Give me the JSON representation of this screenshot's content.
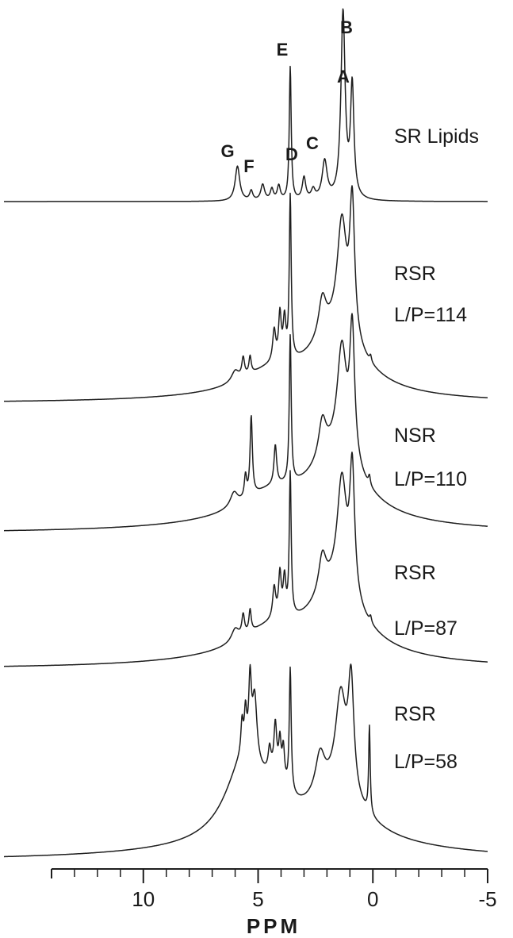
{
  "chart_data": {
    "type": "line",
    "title": "",
    "xlabel": "PPM",
    "ylabel": "",
    "x_reversed": true,
    "xlim": [
      14,
      -5
    ],
    "xticks": [
      10,
      5,
      0,
      -5
    ],
    "xtick_labels": [
      "10",
      "5",
      "0",
      "-5"
    ],
    "minor_tick_step": 1,
    "peak_labels": [
      {
        "text": "A",
        "ppm": 0.9
      },
      {
        "text": "B",
        "ppm": 1.3
      },
      {
        "text": "C",
        "ppm": 2.1
      },
      {
        "text": "D",
        "ppm": 3.0
      },
      {
        "text": "E",
        "ppm": 3.6
      },
      {
        "text": "F",
        "ppm": 5.0
      },
      {
        "text": "G",
        "ppm": 5.9
      }
    ],
    "series": [
      {
        "name": "SR Lipids",
        "label_lines": [
          "SR Lipids"
        ],
        "peaks": [
          {
            "ppm": 0.9,
            "height": 140,
            "width": 0.09
          },
          {
            "ppm": 1.3,
            "height": 235,
            "width": 0.11
          },
          {
            "ppm": 2.1,
            "height": 48,
            "width": 0.13
          },
          {
            "ppm": 2.6,
            "height": 12,
            "width": 0.1
          },
          {
            "ppm": 3.0,
            "height": 28,
            "width": 0.09
          },
          {
            "ppm": 3.6,
            "height": 168,
            "width": 0.05
          },
          {
            "ppm": 4.1,
            "height": 18,
            "width": 0.08
          },
          {
            "ppm": 4.4,
            "height": 14,
            "width": 0.08
          },
          {
            "ppm": 4.8,
            "height": 20,
            "width": 0.1
          },
          {
            "ppm": 5.3,
            "height": 12,
            "width": 0.08
          },
          {
            "ppm": 5.9,
            "height": 44,
            "width": 0.12
          }
        ],
        "broad": []
      },
      {
        "name": "RSR L/P=114",
        "label_lines": [
          "RSR",
          "L/P=114"
        ],
        "peaks": [
          {
            "ppm": 0.1,
            "height": 8,
            "width": 0.05
          },
          {
            "ppm": 0.9,
            "height": 170,
            "width": 0.13
          },
          {
            "ppm": 1.35,
            "height": 140,
            "width": 0.25
          },
          {
            "ppm": 2.2,
            "height": 48,
            "width": 0.2
          },
          {
            "ppm": 3.6,
            "height": 205,
            "width": 0.05
          },
          {
            "ppm": 3.85,
            "height": 50,
            "width": 0.07
          },
          {
            "ppm": 4.05,
            "height": 58,
            "width": 0.07
          },
          {
            "ppm": 4.3,
            "height": 40,
            "width": 0.08
          },
          {
            "ppm": 5.35,
            "height": 22,
            "width": 0.06
          },
          {
            "ppm": 5.65,
            "height": 24,
            "width": 0.07
          },
          {
            "ppm": 6.0,
            "height": 14,
            "width": 0.2
          }
        ],
        "broad": [
          {
            "ppm": 1.6,
            "height": 70,
            "width": 1.4
          },
          {
            "ppm": 4.5,
            "height": 22,
            "width": 1.5
          },
          {
            "ppm": 3.0,
            "height": 12,
            "width": 4.5
          }
        ]
      },
      {
        "name": "NSR L/P=110",
        "label_lines": [
          "NSR",
          "L/P=110"
        ],
        "peaks": [
          {
            "ppm": 0.15,
            "height": 12,
            "width": 0.05
          },
          {
            "ppm": 0.9,
            "height": 165,
            "width": 0.13
          },
          {
            "ppm": 1.35,
            "height": 135,
            "width": 0.25
          },
          {
            "ppm": 2.2,
            "height": 48,
            "width": 0.2
          },
          {
            "ppm": 3.6,
            "height": 185,
            "width": 0.05
          },
          {
            "ppm": 4.25,
            "height": 50,
            "width": 0.07
          },
          {
            "ppm": 5.3,
            "height": 100,
            "width": 0.06
          },
          {
            "ppm": 5.55,
            "height": 28,
            "width": 0.06
          },
          {
            "ppm": 6.05,
            "height": 18,
            "width": 0.2
          }
        ],
        "broad": [
          {
            "ppm": 1.6,
            "height": 75,
            "width": 1.4
          },
          {
            "ppm": 4.5,
            "height": 28,
            "width": 1.6
          },
          {
            "ppm": 3.0,
            "height": 16,
            "width": 5.0
          }
        ]
      },
      {
        "name": "RSR L/P=87",
        "label_lines": [
          "RSR",
          "L/P=87"
        ],
        "peaks": [
          {
            "ppm": 0.1,
            "height": 8,
            "width": 0.05
          },
          {
            "ppm": 0.9,
            "height": 160,
            "width": 0.13
          },
          {
            "ppm": 1.35,
            "height": 140,
            "width": 0.25
          },
          {
            "ppm": 2.2,
            "height": 48,
            "width": 0.2
          },
          {
            "ppm": 3.6,
            "height": 180,
            "width": 0.05
          },
          {
            "ppm": 3.85,
            "height": 48,
            "width": 0.07
          },
          {
            "ppm": 4.05,
            "height": 55,
            "width": 0.07
          },
          {
            "ppm": 4.3,
            "height": 40,
            "width": 0.08
          },
          {
            "ppm": 5.35,
            "height": 28,
            "width": 0.06
          },
          {
            "ppm": 5.65,
            "height": 26,
            "width": 0.07
          },
          {
            "ppm": 6.0,
            "height": 16,
            "width": 0.2
          }
        ],
        "broad": [
          {
            "ppm": 1.6,
            "height": 75,
            "width": 1.4
          },
          {
            "ppm": 4.5,
            "height": 28,
            "width": 1.6
          },
          {
            "ppm": 3.0,
            "height": 16,
            "width": 5.0
          }
        ]
      },
      {
        "name": "RSR L/P=58",
        "label_lines": [
          "RSR",
          "L/P=58"
        ],
        "peaks": [
          {
            "ppm": 0.15,
            "height": 110,
            "width": 0.04
          },
          {
            "ppm": 0.95,
            "height": 140,
            "width": 0.15
          },
          {
            "ppm": 1.4,
            "height": 120,
            "width": 0.28
          },
          {
            "ppm": 2.3,
            "height": 50,
            "width": 0.25
          },
          {
            "ppm": 3.6,
            "height": 155,
            "width": 0.05
          },
          {
            "ppm": 3.9,
            "height": 40,
            "width": 0.06
          },
          {
            "ppm": 4.05,
            "height": 42,
            "width": 0.06
          },
          {
            "ppm": 4.25,
            "height": 58,
            "width": 0.07
          },
          {
            "ppm": 4.5,
            "height": 28,
            "width": 0.07
          },
          {
            "ppm": 5.15,
            "height": 80,
            "width": 0.12
          },
          {
            "ppm": 5.35,
            "height": 90,
            "width": 0.07
          },
          {
            "ppm": 5.55,
            "height": 48,
            "width": 0.06
          },
          {
            "ppm": 5.7,
            "height": 40,
            "width": 0.06
          }
        ],
        "broad": [
          {
            "ppm": 1.6,
            "height": 55,
            "width": 1.5
          },
          {
            "ppm": 5.6,
            "height": 100,
            "width": 1.0
          },
          {
            "ppm": 4.2,
            "height": 40,
            "width": 0.6
          },
          {
            "ppm": 3.0,
            "height": 22,
            "width": 6.0
          }
        ]
      }
    ]
  }
}
